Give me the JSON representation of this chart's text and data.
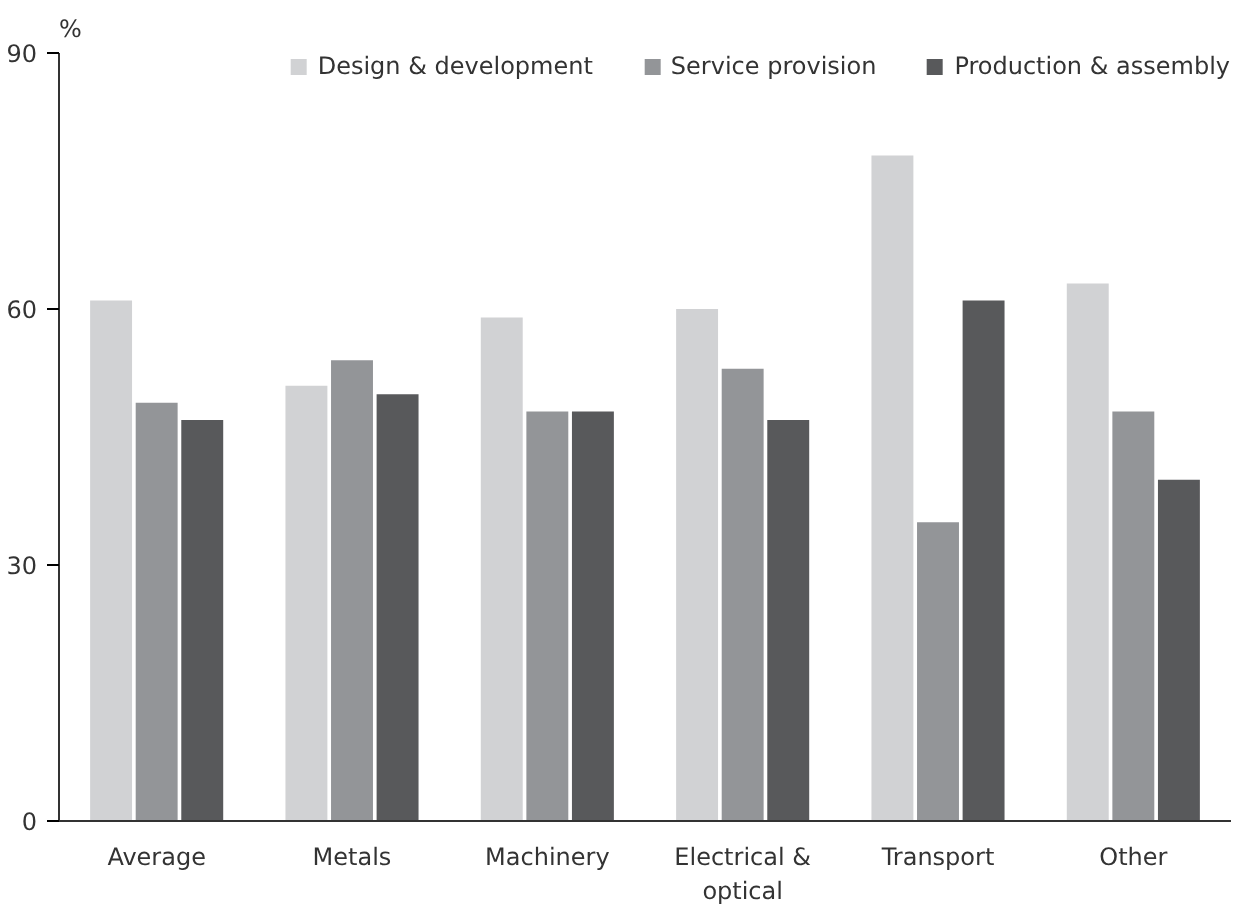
{
  "chart_data": {
    "type": "bar",
    "ylabel": "%",
    "categories": [
      "Average",
      "Metals",
      "Machinery",
      "Electrical & optical",
      "Transport",
      "Other"
    ],
    "series": [
      {
        "name": "Design & development",
        "color": "#d1d2d4",
        "values": [
          61,
          51,
          59,
          60,
          78,
          63
        ]
      },
      {
        "name": "Service provision",
        "color": "#939598",
        "values": [
          49,
          54,
          48,
          53,
          35,
          48
        ]
      },
      {
        "name": "Production & assembly",
        "color": "#58595b",
        "values": [
          47,
          50,
          48,
          47,
          61,
          40
        ]
      }
    ],
    "ylim": [
      0,
      90
    ],
    "yticks": [
      0,
      30,
      60,
      90
    ],
    "grid": false,
    "legend": "top"
  }
}
